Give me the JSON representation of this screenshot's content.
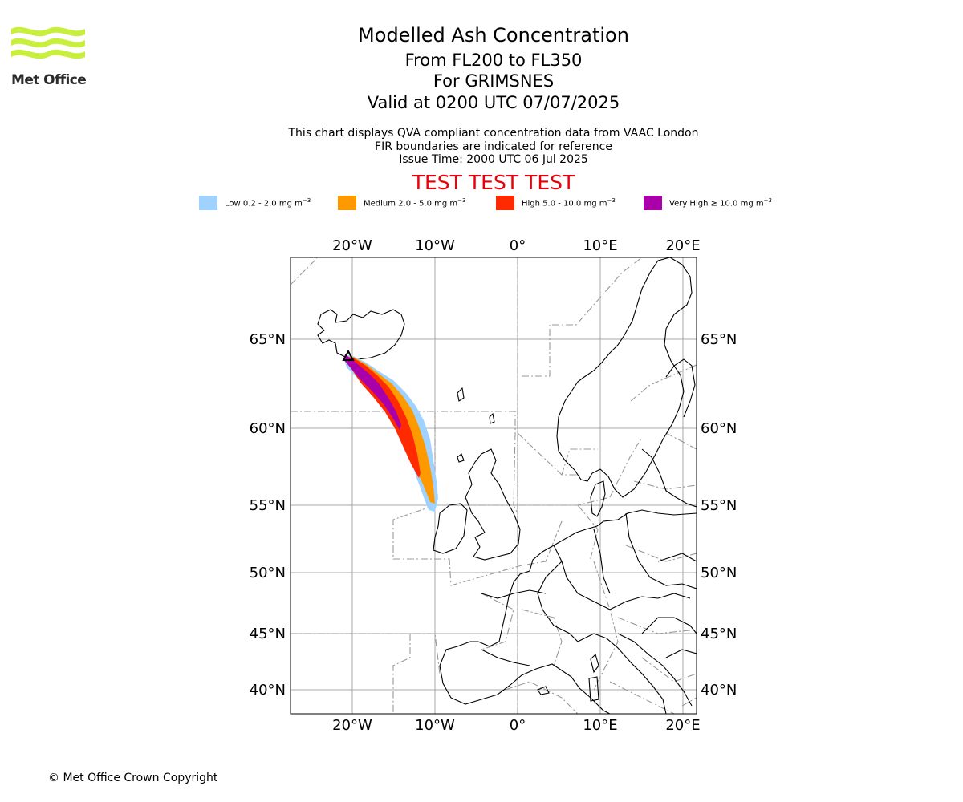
{
  "logo": {
    "name": "Met Office"
  },
  "header": {
    "title": "Modelled Ash Concentration",
    "levels": "From FL200 to FL350",
    "volcano": "For GRIMSNES",
    "valid": "Valid at 0200 UTC 07/07/2025",
    "info_line1": "This chart displays QVA compliant concentration data from VAAC London",
    "info_line2": "FIR boundaries are indicated for reference",
    "issue_time": "Issue Time: 2000 UTC 06 Jul 2025",
    "test_banner": "TEST TEST TEST"
  },
  "legend": [
    {
      "label_text": "Low 0.2 - 2.0 mg m",
      "color": "#a0d2ff"
    },
    {
      "label_text": "Medium 2.0 - 5.0 mg m",
      "color": "#ff9900"
    },
    {
      "label_text": "High 5.0 - 10.0 mg m",
      "color": "#ff2a00"
    },
    {
      "label_text": "Very High ≥ 10.0 mg m",
      "color": "#aa00aa"
    }
  ],
  "legend_unit_exponent": "−3",
  "map": {
    "lon_labels": [
      "20°W",
      "10°W",
      "0°",
      "10°E",
      "20°E"
    ],
    "lat_labels": [
      "65°N",
      "60°N",
      "55°N",
      "50°N",
      "45°N",
      "40°N"
    ],
    "gridlines": true,
    "coastlines": true,
    "fir_boundaries": true,
    "volcano_marker": "triangle"
  },
  "footer": {
    "copyright": "© Met Office Crown Copyright"
  }
}
